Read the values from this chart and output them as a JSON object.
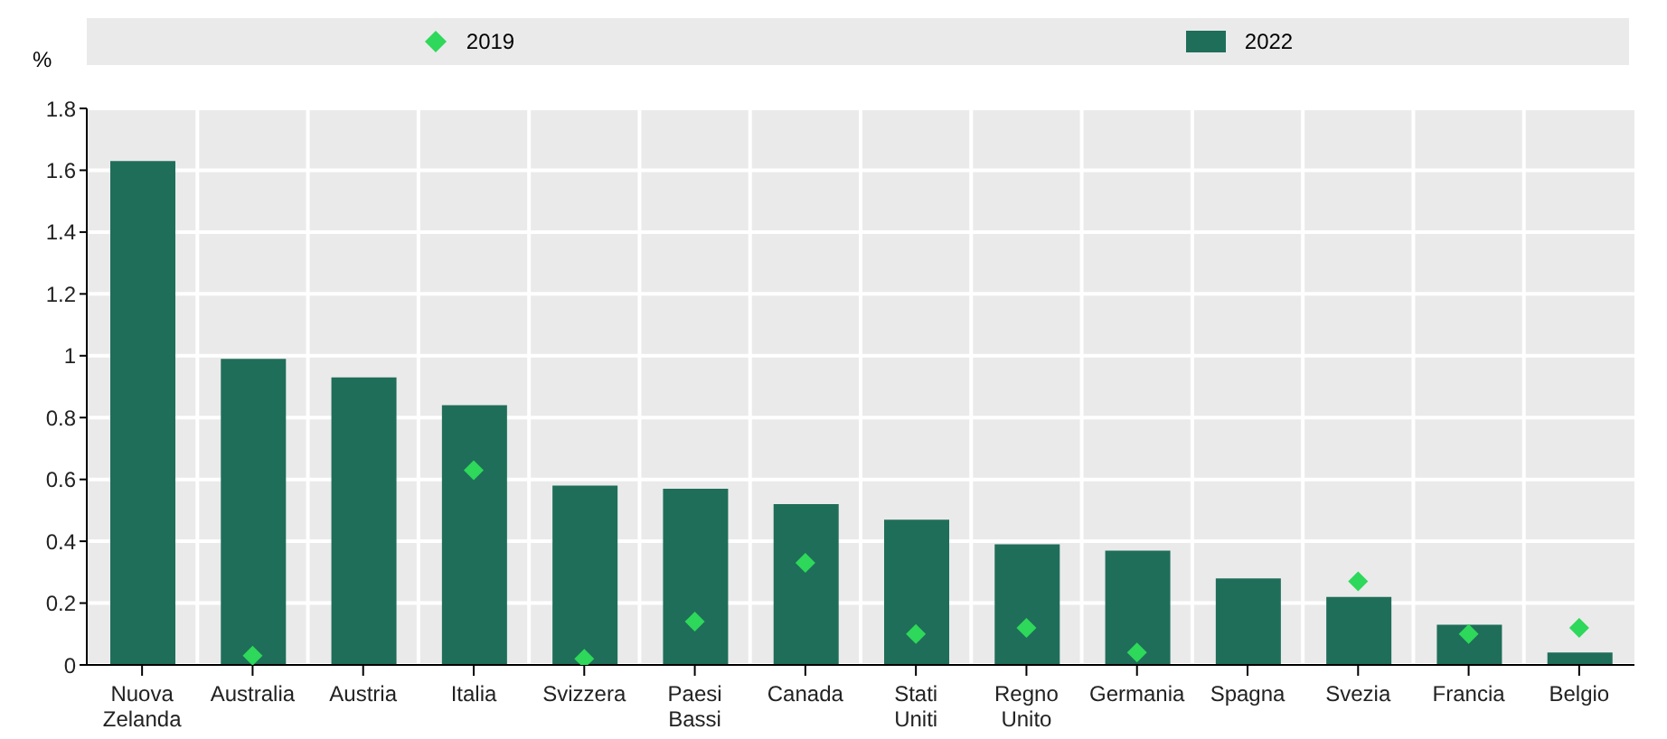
{
  "chart_data": {
    "type": "bar",
    "ylabel": "%",
    "categories": [
      "Nuova Zelanda",
      "Australia",
      "Austria",
      "Italia",
      "Svizzera",
      "Paesi Bassi",
      "Canada",
      "Stati Uniti",
      "Regno Unito",
      "Germania",
      "Spagna",
      "Svezia",
      "Francia",
      "Belgio"
    ],
    "series": [
      {
        "name": "2019",
        "type": "scatter",
        "marker": "diamond",
        "color": "#2ed85a",
        "values": [
          null,
          0.03,
          null,
          0.63,
          0.02,
          0.14,
          0.33,
          0.1,
          0.12,
          0.04,
          null,
          0.27,
          0.1,
          0.12
        ]
      },
      {
        "name": "2022",
        "color": "#1f6e59",
        "values": [
          1.63,
          0.99,
          0.93,
          0.84,
          0.58,
          0.57,
          0.52,
          0.47,
          0.39,
          0.37,
          0.28,
          0.22,
          0.13,
          0.04
        ]
      }
    ],
    "ylim": [
      0,
      1.8
    ],
    "yticks": [
      0,
      0.2,
      0.4,
      0.6,
      0.8,
      1,
      1.2,
      1.4,
      1.6,
      1.8
    ],
    "grid": true,
    "legend": "top"
  }
}
